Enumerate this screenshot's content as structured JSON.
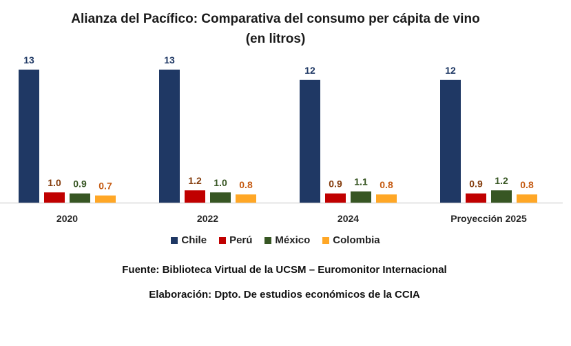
{
  "chart_data": {
    "type": "bar",
    "title": "Alianza del Pacífico: Comparativa del consumo per cápita de vino",
    "subtitle": "(en litros)",
    "xlabel": "",
    "ylabel": "",
    "ylim": [
      0,
      13
    ],
    "grid": false,
    "legend_position": "bottom",
    "categories": [
      "2020",
      "2022",
      "2024",
      "Proyección 2025"
    ],
    "series": [
      {
        "name": "Chile",
        "color": "#1F3864",
        "label_color": "#1F3864",
        "values": [
          13,
          13,
          12,
          12
        ],
        "labels": [
          "13",
          "13",
          "12",
          "12"
        ]
      },
      {
        "name": "Perú",
        "color": "#C00000",
        "label_color": "#843C0C",
        "values": [
          1.0,
          1.2,
          0.9,
          0.9
        ],
        "labels": [
          "1.0",
          "1.2",
          "0.9",
          "0.9"
        ]
      },
      {
        "name": "México",
        "color": "#375623",
        "label_color": "#375623",
        "values": [
          0.9,
          1.0,
          1.1,
          1.2
        ],
        "labels": [
          "0.9",
          "1.0",
          "1.1",
          "1.2"
        ]
      },
      {
        "name": "Colombia",
        "color": "#FFA726",
        "label_color": "#C55A11",
        "values": [
          0.7,
          0.8,
          0.8,
          0.8
        ],
        "labels": [
          "0.7",
          "0.8",
          "0.8",
          "0.8"
        ]
      }
    ],
    "source": "Fuente: Biblioteca Virtual de la UCSM – Euromonitor Internacional",
    "credit": "Elaboración: Dpto. De estudios económicos de la CCIA"
  }
}
